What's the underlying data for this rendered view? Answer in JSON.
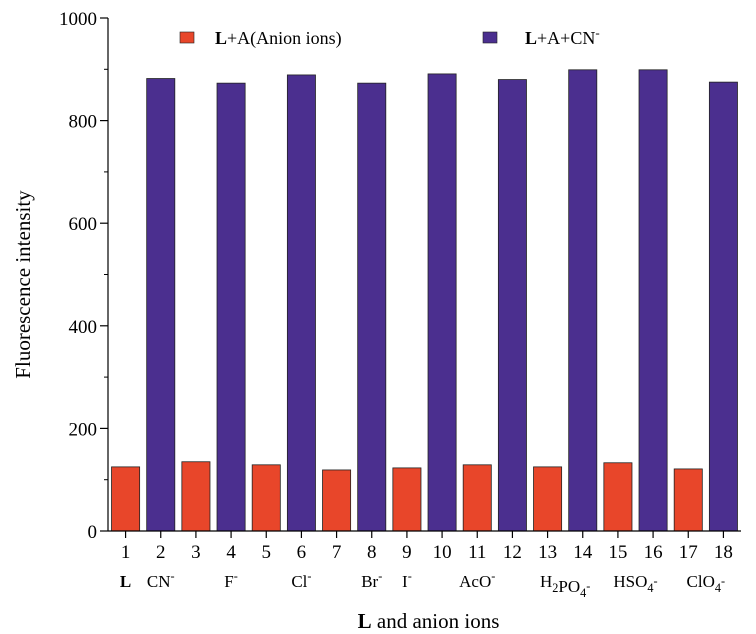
{
  "chart_data": {
    "type": "bar",
    "categories": [
      "1",
      "2",
      "3",
      "4",
      "5",
      "6",
      "7",
      "8",
      "9",
      "10",
      "11",
      "12",
      "13",
      "14",
      "15",
      "16",
      "17",
      "18"
    ],
    "series": [
      {
        "name": "L+A(Anion ions)",
        "color": "#e8462a",
        "bars": [
          {
            "cat": "1",
            "value": 125
          },
          {
            "cat": "3",
            "value": 135
          },
          {
            "cat": "5",
            "value": 129
          },
          {
            "cat": "7",
            "value": 119
          },
          {
            "cat": "9",
            "value": 123
          },
          {
            "cat": "11",
            "value": 129
          },
          {
            "cat": "13",
            "value": 125
          },
          {
            "cat": "15",
            "value": 133
          },
          {
            "cat": "17",
            "value": 121
          }
        ]
      },
      {
        "name": "L+A+CN",
        "color": "#4b2f8f",
        "bars": [
          {
            "cat": "2",
            "value": 882
          },
          {
            "cat": "4",
            "value": 873
          },
          {
            "cat": "6",
            "value": 889
          },
          {
            "cat": "8",
            "value": 873
          },
          {
            "cat": "10",
            "value": 891
          },
          {
            "cat": "12",
            "value": 880
          },
          {
            "cat": "14",
            "value": 899
          },
          {
            "cat": "16",
            "value": 899
          },
          {
            "cat": "18",
            "value": 875
          }
        ]
      }
    ],
    "ion_labels": [
      {
        "cat": "1",
        "parts": [
          {
            "t": "L",
            "b": true
          }
        ]
      },
      {
        "cat": "2",
        "parts": [
          {
            "t": "CN"
          },
          {
            "t": "-",
            "sup": true
          }
        ]
      },
      {
        "cat": "4",
        "parts": [
          {
            "t": "F"
          },
          {
            "t": "-",
            "sup": true
          }
        ]
      },
      {
        "cat": "6",
        "parts": [
          {
            "t": "Cl"
          },
          {
            "t": "-",
            "sup": true
          }
        ]
      },
      {
        "cat": "8",
        "parts": [
          {
            "t": "Br"
          },
          {
            "t": "-",
            "sup": true
          }
        ]
      },
      {
        "cat": "9",
        "parts": [
          {
            "t": "I"
          },
          {
            "t": "-",
            "sup": true
          }
        ]
      },
      {
        "cat": "11",
        "parts": [
          {
            "t": "AcO"
          },
          {
            "t": "-",
            "sup": true
          }
        ]
      },
      {
        "cat": "13.5",
        "parts": [
          {
            "t": "H"
          },
          {
            "t": "2",
            "sub": true
          },
          {
            "t": "PO"
          },
          {
            "t": "4",
            "sub": true
          },
          {
            "t": "-",
            "sup": true
          }
        ]
      },
      {
        "cat": "15.5",
        "parts": [
          {
            "t": "HSO"
          },
          {
            "t": "4",
            "sub": true
          },
          {
            "t": "-",
            "sup": true
          }
        ]
      },
      {
        "cat": "17.5",
        "parts": [
          {
            "t": "ClO"
          },
          {
            "t": "4",
            "sub": true
          },
          {
            "t": "-",
            "sup": true
          }
        ]
      }
    ],
    "legend": [
      {
        "series": 0,
        "parts": [
          {
            "t": "L",
            "b": true
          },
          {
            "t": "+A(Anion ions)"
          }
        ]
      },
      {
        "series": 1,
        "parts": [
          {
            "t": "L",
            "b": true
          },
          {
            "t": "+A+CN"
          },
          {
            "t": "-",
            "sup": true
          }
        ]
      }
    ],
    "ylabel": "Fluorescence intensity",
    "xlabel_parts": [
      {
        "t": "L",
        "b": true
      },
      {
        "t": " and anion ions"
      }
    ],
    "ylim": [
      0,
      1000
    ],
    "yticks": [
      0,
      200,
      400,
      600,
      800,
      1000
    ],
    "yminor": [
      100,
      300,
      500,
      700,
      900
    ],
    "legend_position": "top",
    "grid": false
  }
}
